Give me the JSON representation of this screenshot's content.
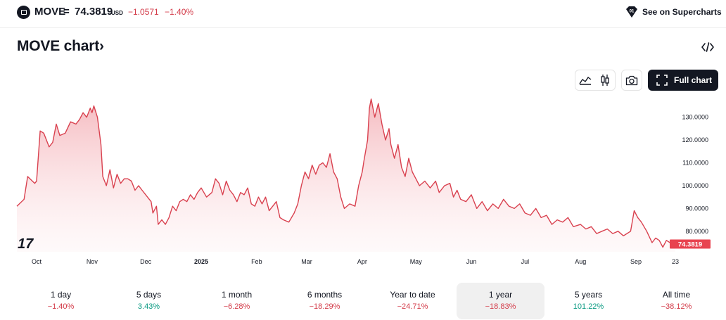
{
  "header": {
    "symbol": "MOVE",
    "separator": "=",
    "price": "74.3819",
    "currency": "USD",
    "change": "−1.0571",
    "change_percent": "−1.40%",
    "supercharts_label": "See on Supercharts",
    "supercharts_badge": "01"
  },
  "title": "MOVE chart",
  "title_arrow": "›",
  "toolbar": {
    "full_chart_label": "Full chart",
    "icons": [
      "area-style-icon",
      "candle-style-icon",
      "camera-icon",
      "fullscreen-icon",
      "embed-code-icon"
    ]
  },
  "watermark": "17",
  "colors": {
    "line": "#d9414f",
    "fill_top": "#f4b3b9",
    "negative": "#d33a48",
    "positive": "#089981",
    "dark_button": "#131722"
  },
  "periods": [
    {
      "label": "1 day",
      "value": "−1.40%",
      "sign": "neg",
      "active": false
    },
    {
      "label": "5 days",
      "value": "3.43%",
      "sign": "pos",
      "active": false
    },
    {
      "label": "1 month",
      "value": "−6.28%",
      "sign": "neg",
      "active": false
    },
    {
      "label": "6 months",
      "value": "−18.29%",
      "sign": "neg",
      "active": false
    },
    {
      "label": "Year to date",
      "value": "−24.71%",
      "sign": "neg",
      "active": false
    },
    {
      "label": "1 year",
      "value": "−18.83%",
      "sign": "neg",
      "active": true
    },
    {
      "label": "5 years",
      "value": "101.22%",
      "sign": "pos",
      "active": false
    },
    {
      "label": "All time",
      "value": "−38.12%",
      "sign": "neg",
      "active": false
    }
  ],
  "chart_data": {
    "type": "area",
    "y_ticks": [
      80,
      90,
      100,
      110,
      120,
      130
    ],
    "y_tick_labels": [
      "80.0000",
      "90.0000",
      "100.0000",
      "110.0000",
      "120.0000",
      "130.0000"
    ],
    "ylim": [
      71,
      137
    ],
    "last_value_label": "74.3819",
    "x_ticks": [
      {
        "label": "Oct",
        "date": "2024-10-01",
        "bold": false
      },
      {
        "label": "Nov",
        "date": "2024-11-01",
        "bold": false
      },
      {
        "label": "Dec",
        "date": "2024-12-01",
        "bold": false
      },
      {
        "label": "2025",
        "date": "2025-01-01",
        "bold": true
      },
      {
        "label": "Feb",
        "date": "2025-02-01",
        "bold": false
      },
      {
        "label": "Mar",
        "date": "2025-03-01",
        "bold": false
      },
      {
        "label": "Apr",
        "date": "2025-04-01",
        "bold": false
      },
      {
        "label": "May",
        "date": "2025-05-01",
        "bold": false
      },
      {
        "label": "Jun",
        "date": "2025-06-01",
        "bold": false
      },
      {
        "label": "Jul",
        "date": "2025-07-01",
        "bold": false
      },
      {
        "label": "Aug",
        "date": "2025-08-01",
        "bold": false
      },
      {
        "label": "Sep",
        "date": "2025-09-01",
        "bold": false
      },
      {
        "label": "23",
        "date": "2025-09-23",
        "bold": false
      }
    ],
    "xlim": [
      "2024-09-20",
      "2025-09-23"
    ],
    "series": [
      {
        "points": [
          [
            "2024-09-20",
            91
          ],
          [
            "2024-09-24",
            94
          ],
          [
            "2024-09-26",
            104
          ],
          [
            "2024-09-30",
            101
          ],
          [
            "2024-10-01",
            102
          ],
          [
            "2024-10-03",
            124
          ],
          [
            "2024-10-05",
            123
          ],
          [
            "2024-10-08",
            117
          ],
          [
            "2024-10-10",
            119
          ],
          [
            "2024-10-12",
            127
          ],
          [
            "2024-10-14",
            122
          ],
          [
            "2024-10-17",
            123
          ],
          [
            "2024-10-20",
            128
          ],
          [
            "2024-10-23",
            127
          ],
          [
            "2024-10-25",
            129
          ],
          [
            "2024-10-27",
            132
          ],
          [
            "2024-10-29",
            130
          ],
          [
            "2024-10-31",
            134
          ],
          [
            "2024-11-01",
            132
          ],
          [
            "2024-11-02",
            135
          ],
          [
            "2024-11-04",
            130
          ],
          [
            "2024-11-06",
            118
          ],
          [
            "2024-11-07",
            104
          ],
          [
            "2024-11-09",
            100
          ],
          [
            "2024-11-11",
            107
          ],
          [
            "2024-11-13",
            99
          ],
          [
            "2024-11-15",
            105
          ],
          [
            "2024-11-17",
            101
          ],
          [
            "2024-11-19",
            103
          ],
          [
            "2024-11-21",
            103
          ],
          [
            "2024-11-23",
            102
          ],
          [
            "2024-11-25",
            98
          ],
          [
            "2024-11-27",
            100
          ],
          [
            "2024-11-29",
            98
          ],
          [
            "2024-12-01",
            96
          ],
          [
            "2024-12-04",
            93
          ],
          [
            "2024-12-05",
            88
          ],
          [
            "2024-12-07",
            91
          ],
          [
            "2024-12-08",
            83
          ],
          [
            "2024-12-10",
            85
          ],
          [
            "2024-12-12",
            83
          ],
          [
            "2024-12-14",
            86
          ],
          [
            "2024-12-16",
            91
          ],
          [
            "2024-12-18",
            89
          ],
          [
            "2024-12-20",
            93
          ],
          [
            "2024-12-22",
            94
          ],
          [
            "2024-12-24",
            93
          ],
          [
            "2024-12-26",
            96
          ],
          [
            "2024-12-28",
            94
          ],
          [
            "2024-12-30",
            97
          ],
          [
            "2025-01-01",
            99
          ],
          [
            "2025-01-04",
            95
          ],
          [
            "2025-01-07",
            97
          ],
          [
            "2025-01-09",
            103
          ],
          [
            "2025-01-11",
            101
          ],
          [
            "2025-01-13",
            96
          ],
          [
            "2025-01-15",
            102
          ],
          [
            "2025-01-17",
            98
          ],
          [
            "2025-01-19",
            96
          ],
          [
            "2025-01-21",
            93
          ],
          [
            "2025-01-23",
            97
          ],
          [
            "2025-01-25",
            96
          ],
          [
            "2025-01-27",
            99
          ],
          [
            "2025-01-29",
            92
          ],
          [
            "2025-01-31",
            91
          ],
          [
            "2025-02-02",
            95
          ],
          [
            "2025-02-04",
            92
          ],
          [
            "2025-02-06",
            95
          ],
          [
            "2025-02-08",
            89
          ],
          [
            "2025-02-10",
            91
          ],
          [
            "2025-02-12",
            93
          ],
          [
            "2025-02-14",
            86
          ],
          [
            "2025-02-16",
            85
          ],
          [
            "2025-02-19",
            84
          ],
          [
            "2025-02-22",
            88
          ],
          [
            "2025-02-24",
            92
          ],
          [
            "2025-02-26",
            100
          ],
          [
            "2025-02-28",
            106
          ],
          [
            "2025-03-02",
            103
          ],
          [
            "2025-03-04",
            109
          ],
          [
            "2025-03-06",
            105
          ],
          [
            "2025-03-08",
            109
          ],
          [
            "2025-03-10",
            110
          ],
          [
            "2025-03-12",
            108
          ],
          [
            "2025-03-14",
            114
          ],
          [
            "2025-03-16",
            106
          ],
          [
            "2025-03-18",
            103
          ],
          [
            "2025-03-20",
            95
          ],
          [
            "2025-03-22",
            90
          ],
          [
            "2025-03-25",
            92
          ],
          [
            "2025-03-28",
            91
          ],
          [
            "2025-03-30",
            100
          ],
          [
            "2025-04-01",
            106
          ],
          [
            "2025-04-02",
            111
          ],
          [
            "2025-04-04",
            120
          ],
          [
            "2025-04-05",
            134
          ],
          [
            "2025-04-06",
            138
          ],
          [
            "2025-04-08",
            130
          ],
          [
            "2025-04-10",
            136
          ],
          [
            "2025-04-12",
            127
          ],
          [
            "2025-04-14",
            120
          ],
          [
            "2025-04-16",
            125
          ],
          [
            "2025-04-17",
            118
          ],
          [
            "2025-04-19",
            112
          ],
          [
            "2025-04-21",
            118
          ],
          [
            "2025-04-23",
            108
          ],
          [
            "2025-04-25",
            104
          ],
          [
            "2025-04-27",
            112
          ],
          [
            "2025-04-29",
            106
          ],
          [
            "2025-05-01",
            103
          ],
          [
            "2025-05-03",
            100
          ],
          [
            "2025-05-06",
            102
          ],
          [
            "2025-05-09",
            99
          ],
          [
            "2025-05-12",
            102
          ],
          [
            "2025-05-14",
            97
          ],
          [
            "2025-05-17",
            100
          ],
          [
            "2025-05-20",
            101
          ],
          [
            "2025-05-22",
            95
          ],
          [
            "2025-05-24",
            98
          ],
          [
            "2025-05-26",
            94
          ],
          [
            "2025-05-29",
            93
          ],
          [
            "2025-06-01",
            96
          ],
          [
            "2025-06-04",
            90
          ],
          [
            "2025-06-07",
            93
          ],
          [
            "2025-06-10",
            89
          ],
          [
            "2025-06-13",
            92
          ],
          [
            "2025-06-16",
            90
          ],
          [
            "2025-06-19",
            94
          ],
          [
            "2025-06-22",
            91
          ],
          [
            "2025-06-25",
            90
          ],
          [
            "2025-06-28",
            92
          ],
          [
            "2025-07-01",
            88
          ],
          [
            "2025-07-04",
            87
          ],
          [
            "2025-07-07",
            90
          ],
          [
            "2025-07-10",
            86
          ],
          [
            "2025-07-13",
            87
          ],
          [
            "2025-07-16",
            83
          ],
          [
            "2025-07-19",
            85
          ],
          [
            "2025-07-22",
            84
          ],
          [
            "2025-07-25",
            86
          ],
          [
            "2025-07-28",
            82
          ],
          [
            "2025-08-01",
            83
          ],
          [
            "2025-08-04",
            81
          ],
          [
            "2025-08-07",
            82
          ],
          [
            "2025-08-10",
            79
          ],
          [
            "2025-08-13",
            80
          ],
          [
            "2025-08-16",
            81
          ],
          [
            "2025-08-19",
            79
          ],
          [
            "2025-08-22",
            80
          ],
          [
            "2025-08-25",
            78
          ],
          [
            "2025-08-29",
            80
          ],
          [
            "2025-08-31",
            89
          ],
          [
            "2025-09-02",
            86
          ],
          [
            "2025-09-04",
            84
          ],
          [
            "2025-09-07",
            80
          ],
          [
            "2025-09-10",
            75
          ],
          [
            "2025-09-12",
            77
          ],
          [
            "2025-09-14",
            76
          ],
          [
            "2025-09-16",
            73
          ],
          [
            "2025-09-18",
            76
          ],
          [
            "2025-09-20",
            75
          ],
          [
            "2025-09-23",
            74.3819
          ]
        ]
      }
    ]
  }
}
